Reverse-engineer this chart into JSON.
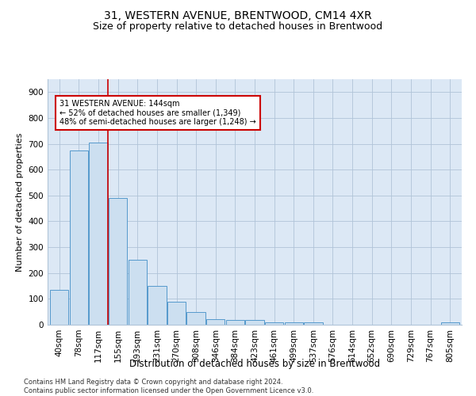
{
  "title": "31, WESTERN AVENUE, BRENTWOOD, CM14 4XR",
  "subtitle": "Size of property relative to detached houses in Brentwood",
  "xlabel": "Distribution of detached houses by size in Brentwood",
  "ylabel": "Number of detached properties",
  "categories": [
    "40sqm",
    "78sqm",
    "117sqm",
    "155sqm",
    "193sqm",
    "231sqm",
    "270sqm",
    "308sqm",
    "346sqm",
    "384sqm",
    "423sqm",
    "461sqm",
    "499sqm",
    "537sqm",
    "576sqm",
    "614sqm",
    "652sqm",
    "690sqm",
    "729sqm",
    "767sqm",
    "805sqm"
  ],
  "values": [
    135,
    675,
    705,
    490,
    252,
    150,
    88,
    50,
    22,
    18,
    18,
    10,
    10,
    8,
    0,
    0,
    0,
    0,
    0,
    0,
    8
  ],
  "bar_color": "#ccdff0",
  "bar_edge_color": "#5599cc",
  "vline_x": 2.5,
  "vline_color": "#cc0000",
  "annotation_text": "31 WESTERN AVENUE: 144sqm\n← 52% of detached houses are smaller (1,349)\n48% of semi-detached houses are larger (1,248) →",
  "annotation_box_color": "#ffffff",
  "annotation_box_edge": "#cc0000",
  "ylim": [
    0,
    950
  ],
  "yticks": [
    0,
    100,
    200,
    300,
    400,
    500,
    600,
    700,
    800,
    900
  ],
  "footer": "Contains HM Land Registry data © Crown copyright and database right 2024.\nContains public sector information licensed under the Open Government Licence v3.0.",
  "plot_background": "#dce8f5",
  "title_fontsize": 10,
  "subtitle_fontsize": 9,
  "axis_label_fontsize": 8,
  "tick_fontsize": 7.5,
  "footer_fontsize": 6
}
